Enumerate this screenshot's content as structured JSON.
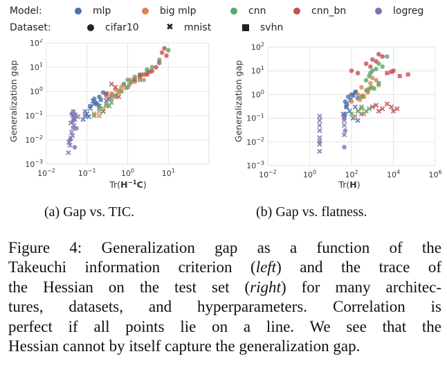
{
  "legend": {
    "model_title": "Model:",
    "dataset_title": "Dataset:",
    "models": [
      {
        "label": "mlp",
        "color": "#4c72b0"
      },
      {
        "label": "big mlp",
        "color": "#dd8452"
      },
      {
        "label": "cnn",
        "color": "#55a868"
      },
      {
        "label": "cnn_bn",
        "color": "#c44e52"
      },
      {
        "label": "logreg",
        "color": "#8172b3"
      }
    ],
    "datasets": [
      {
        "label": "cifar10",
        "marker": "circle"
      },
      {
        "label": "mnist",
        "marker": "x"
      },
      {
        "label": "svhn",
        "marker": "square"
      }
    ]
  },
  "chart_data": [
    {
      "type": "scatter",
      "panel": "left",
      "subcaption": "(a) Gap vs. TIC.",
      "xlabel_prefix": "Tr(",
      "xlabel_H": "H",
      "xlabel_sup": "−1",
      "xlabel_C": "C",
      "xlabel_suffix": ")",
      "ylabel": "Generalization gap",
      "xscale": "log",
      "yscale": "log",
      "xlim": [
        0.01,
        100
      ],
      "ylim": [
        0.001,
        100
      ],
      "xticks": [
        0.01,
        0.1,
        1,
        10
      ],
      "xtick_labels": [
        [
          "10",
          "−2"
        ],
        [
          "10",
          "−1"
        ],
        [
          "10",
          "0"
        ],
        [
          "10",
          "1"
        ]
      ],
      "yticks": [
        0.001,
        0.01,
        0.1,
        1,
        10,
        100
      ],
      "ytick_labels": [
        [
          "10",
          "−3"
        ],
        [
          "10",
          "−2"
        ],
        [
          "10",
          "−1"
        ],
        [
          "10",
          "0"
        ],
        [
          "10",
          "1"
        ],
        [
          "10",
          "2"
        ]
      ],
      "grid": true,
      "series": [
        {
          "model": "logreg",
          "dataset": "mnist",
          "points": [
            [
              0.035,
              0.003
            ],
            [
              0.038,
              0.006
            ],
            [
              0.04,
              0.012
            ],
            [
              0.042,
              0.02
            ],
            [
              0.045,
              0.03
            ],
            [
              0.04,
              0.05
            ],
            [
              0.05,
              0.07
            ],
            [
              0.045,
              0.1
            ],
            [
              0.06,
              0.09
            ],
            [
              0.036,
              0.008
            ],
            [
              0.044,
              0.015
            ],
            [
              0.048,
              0.04
            ]
          ]
        },
        {
          "model": "logreg",
          "dataset": "cifar10",
          "points": [
            [
              0.038,
              0.01
            ],
            [
              0.05,
              0.005
            ],
            [
              0.045,
              0.06
            ],
            [
              0.042,
              0.12
            ],
            [
              0.055,
              0.03
            ]
          ]
        },
        {
          "model": "logreg",
          "dataset": "svhn",
          "points": [
            [
              0.048,
              0.08
            ],
            [
              0.052,
              0.11
            ],
            [
              0.046,
              0.15
            ],
            [
              0.09,
              0.1
            ]
          ]
        },
        {
          "model": "mlp",
          "dataset": "mnist",
          "points": [
            [
              0.08,
              0.07
            ],
            [
              0.1,
              0.12
            ],
            [
              0.12,
              0.2
            ],
            [
              0.15,
              0.3
            ],
            [
              0.09,
              0.15
            ],
            [
              0.2,
              0.25
            ],
            [
              0.25,
              0.15
            ],
            [
              0.11,
              0.09
            ],
            [
              0.14,
              0.4
            ],
            [
              0.3,
              0.4
            ]
          ]
        },
        {
          "model": "mlp",
          "dataset": "cifar10",
          "points": [
            [
              0.15,
              0.5
            ],
            [
              0.2,
              0.6
            ],
            [
              0.3,
              0.8
            ],
            [
              0.18,
              0.3
            ],
            [
              0.25,
              0.9
            ],
            [
              0.4,
              0.7
            ]
          ]
        },
        {
          "model": "mlp",
          "dataset": "svhn",
          "points": [
            [
              0.12,
              0.25
            ],
            [
              0.16,
              0.35
            ],
            [
              0.22,
              0.45
            ],
            [
              0.35,
              0.5
            ]
          ]
        },
        {
          "model": "big mlp",
          "dataset": "cifar10",
          "points": [
            [
              0.3,
              0.6
            ],
            [
              0.5,
              1.2
            ],
            [
              0.8,
              2
            ],
            [
              1.2,
              3
            ],
            [
              0.6,
              0.9
            ],
            [
              1.5,
              2.5
            ],
            [
              2,
              4
            ],
            [
              0.4,
              0.5
            ],
            [
              0.7,
              1.5
            ],
            [
              2.5,
              3
            ]
          ]
        },
        {
          "model": "big mlp",
          "dataset": "mnist",
          "points": [
            [
              0.15,
              0.12
            ],
            [
              0.2,
              0.15
            ],
            [
              0.25,
              0.2
            ],
            [
              0.3,
              0.25
            ],
            [
              0.2,
              0.1
            ]
          ]
        },
        {
          "model": "big mlp",
          "dataset": "svhn",
          "points": [
            [
              0.4,
              0.8
            ],
            [
              0.6,
              1.1
            ],
            [
              0.9,
              1.4
            ],
            [
              1.1,
              1.9
            ],
            [
              0.5,
              0.6
            ]
          ]
        },
        {
          "model": "cnn",
          "dataset": "cifar10",
          "points": [
            [
              1,
              3
            ],
            [
              2,
              5
            ],
            [
              4,
              10
            ],
            [
              3,
              8
            ],
            [
              6,
              20
            ],
            [
              10,
              50
            ],
            [
              0.8,
              2
            ],
            [
              1.5,
              4
            ]
          ]
        },
        {
          "model": "cnn",
          "dataset": "mnist",
          "points": [
            [
              0.2,
              0.2
            ],
            [
              0.3,
              0.3
            ],
            [
              0.25,
              0.15
            ],
            [
              0.4,
              0.35
            ],
            [
              0.15,
              0.1
            ],
            [
              0.35,
              0.25
            ]
          ]
        },
        {
          "model": "cnn",
          "dataset": "svhn",
          "points": [
            [
              0.5,
              0.7
            ],
            [
              0.7,
              1
            ],
            [
              1,
              1.5
            ],
            [
              1.2,
              2.4
            ],
            [
              3,
              6
            ],
            [
              2,
              3
            ]
          ]
        },
        {
          "model": "cnn_bn",
          "dataset": "cifar10",
          "points": [
            [
              3,
              5
            ],
            [
              5,
              10
            ],
            [
              4,
              7
            ],
            [
              6,
              15
            ],
            [
              8,
              60
            ],
            [
              7,
              40
            ],
            [
              9,
              30
            ]
          ]
        },
        {
          "model": "cnn_bn",
          "dataset": "mnist",
          "points": [
            [
              0.4,
              2
            ],
            [
              0.5,
              1.5
            ],
            [
              0.3,
              0.8
            ],
            [
              0.6,
              0.6
            ]
          ]
        },
        {
          "model": "cnn_bn",
          "dataset": "svhn",
          "points": [
            [
              1.5,
              3
            ],
            [
              2.5,
              5
            ],
            [
              2,
              4.5
            ],
            [
              3.5,
              6.5
            ]
          ]
        }
      ]
    },
    {
      "type": "scatter",
      "panel": "right",
      "subcaption": "(b) Gap vs. flatness.",
      "xlabel_prefix": "Tr(",
      "xlabel_H": "H",
      "xlabel_suffix": ")",
      "ylabel": "Generalization gap",
      "xscale": "log",
      "yscale": "log",
      "xlim": [
        0.01,
        1000000
      ],
      "ylim": [
        0.001,
        100
      ],
      "xticks": [
        0.01,
        1,
        100,
        10000,
        1000000
      ],
      "xtick_labels": [
        [
          "10",
          "−2"
        ],
        [
          "10",
          "0"
        ],
        [
          "10",
          "2"
        ],
        [
          "10",
          "4"
        ],
        [
          "10",
          "6"
        ]
      ],
      "yticks": [
        0.001,
        0.01,
        0.1,
        1,
        10,
        100
      ],
      "ytick_labels": [
        [
          "10",
          "−3"
        ],
        [
          "10",
          "−2"
        ],
        [
          "10",
          "−1"
        ],
        [
          "10",
          "0"
        ],
        [
          "10",
          "1"
        ],
        [
          "10",
          "2"
        ]
      ],
      "grid": true,
      "series": [
        {
          "model": "logreg",
          "dataset": "mnist",
          "points": [
            [
              3,
              0.004
            ],
            [
              3,
              0.008
            ],
            [
              3,
              0.015
            ],
            [
              3,
              0.03
            ],
            [
              3,
              0.05
            ],
            [
              3,
              0.08
            ],
            [
              3,
              0.12
            ],
            [
              45,
              0.02
            ],
            [
              45,
              0.05
            ],
            [
              45,
              0.08
            ]
          ]
        },
        {
          "model": "logreg",
          "dataset": "cifar10",
          "points": [
            [
              3,
              0.01
            ],
            [
              45,
              0.006
            ],
            [
              45,
              0.12
            ],
            [
              50,
              0.03
            ]
          ]
        },
        {
          "model": "logreg",
          "dataset": "svhn",
          "points": [
            [
              45,
              0.1
            ],
            [
              50,
              0.15
            ],
            [
              55,
              0.3
            ]
          ]
        },
        {
          "model": "mlp",
          "dataset": "mnist",
          "points": [
            [
              40,
              0.15
            ],
            [
              60,
              0.3
            ],
            [
              80,
              0.2
            ],
            [
              120,
              0.1
            ],
            [
              200,
              0.08
            ],
            [
              300,
              0.15
            ],
            [
              150,
              0.3
            ]
          ]
        },
        {
          "model": "mlp",
          "dataset": "cifar10",
          "points": [
            [
              50,
              0.5
            ],
            [
              70,
              0.8
            ],
            [
              100,
              1
            ],
            [
              150,
              1.2
            ],
            [
              200,
              0.7
            ]
          ]
        },
        {
          "model": "mlp",
          "dataset": "svhn",
          "points": [
            [
              60,
              0.4
            ],
            [
              90,
              0.6
            ],
            [
              120,
              0.9
            ],
            [
              160,
              1.3
            ]
          ]
        },
        {
          "model": "big mlp",
          "dataset": "cifar10",
          "points": [
            [
              100,
              0.5
            ],
            [
              200,
              1
            ],
            [
              300,
              2
            ],
            [
              500,
              1.5
            ],
            [
              800,
              3
            ],
            [
              1000,
              5
            ],
            [
              1500,
              4
            ],
            [
              2000,
              2.5
            ],
            [
              400,
              0.8
            ],
            [
              600,
              1.2
            ]
          ]
        },
        {
          "model": "big mlp",
          "dataset": "mnist",
          "points": [
            [
              200,
              0.2
            ],
            [
              300,
              0.25
            ],
            [
              400,
              0.15
            ],
            [
              150,
              0.12
            ]
          ]
        },
        {
          "model": "big mlp",
          "dataset": "svhn",
          "points": [
            [
              250,
              0.6
            ],
            [
              350,
              0.9
            ],
            [
              700,
              1.8
            ]
          ]
        },
        {
          "model": "cnn",
          "dataset": "cifar10",
          "points": [
            [
              500,
              4
            ],
            [
              1000,
              10
            ],
            [
              2000,
              20
            ],
            [
              3000,
              15
            ],
            [
              5000,
              40
            ],
            [
              800,
              8
            ],
            [
              1500,
              12
            ],
            [
              700,
              6
            ]
          ]
        },
        {
          "model": "cnn",
          "dataset": "mnist",
          "points": [
            [
              100,
              0.15
            ],
            [
              200,
              0.2
            ],
            [
              300,
              0.3
            ],
            [
              500,
              0.2
            ],
            [
              700,
              0.25
            ]
          ]
        },
        {
          "model": "cnn",
          "dataset": "svhn",
          "points": [
            [
              300,
              0.8
            ],
            [
              600,
              1.5
            ],
            [
              900,
              2
            ],
            [
              1200,
              1.8
            ],
            [
              2000,
              3
            ]
          ]
        },
        {
          "model": "cnn_bn",
          "dataset": "cifar10",
          "points": [
            [
              100,
              10
            ],
            [
              200,
              8
            ],
            [
              500,
              20
            ],
            [
              1000,
              30
            ],
            [
              2000,
              50
            ],
            [
              3000,
              40
            ],
            [
              800,
              15
            ],
            [
              1500,
              25
            ]
          ]
        },
        {
          "model": "cnn_bn",
          "dataset": "mnist",
          "points": [
            [
              1000,
              0.3
            ],
            [
              2000,
              0.2
            ],
            [
              3000,
              0.25
            ],
            [
              5000,
              0.4
            ],
            [
              8000,
              0.3
            ],
            [
              10000,
              0.2
            ],
            [
              15000,
              0.25
            ],
            [
              1500,
              0.35
            ]
          ]
        },
        {
          "model": "cnn_bn",
          "dataset": "svhn",
          "points": [
            [
              5000,
              8
            ],
            [
              10000,
              10
            ],
            [
              20000,
              6
            ],
            [
              50000,
              7
            ],
            [
              8000,
              9
            ]
          ]
        }
      ]
    }
  ],
  "caption": {
    "lines": [
      [
        {
          "t": "Figure 4:  Generalization gap as a function of the"
        }
      ],
      [
        {
          "t": "Takeuchi information criterion ("
        },
        {
          "t": "left",
          "i": true
        },
        {
          "t": ") and the trace of"
        }
      ],
      [
        {
          "t": "the Hessian on the test set ("
        },
        {
          "t": "right",
          "i": true
        },
        {
          "t": ") for many architec-"
        }
      ],
      [
        {
          "t": "tures, datasets, and hyperparameters. Correlation is"
        }
      ],
      [
        {
          "t": "perfect if all points lie on a line.  We see that the"
        }
      ],
      [
        {
          "t": "Hessian cannot by itself capture the generalization gap."
        }
      ]
    ]
  }
}
